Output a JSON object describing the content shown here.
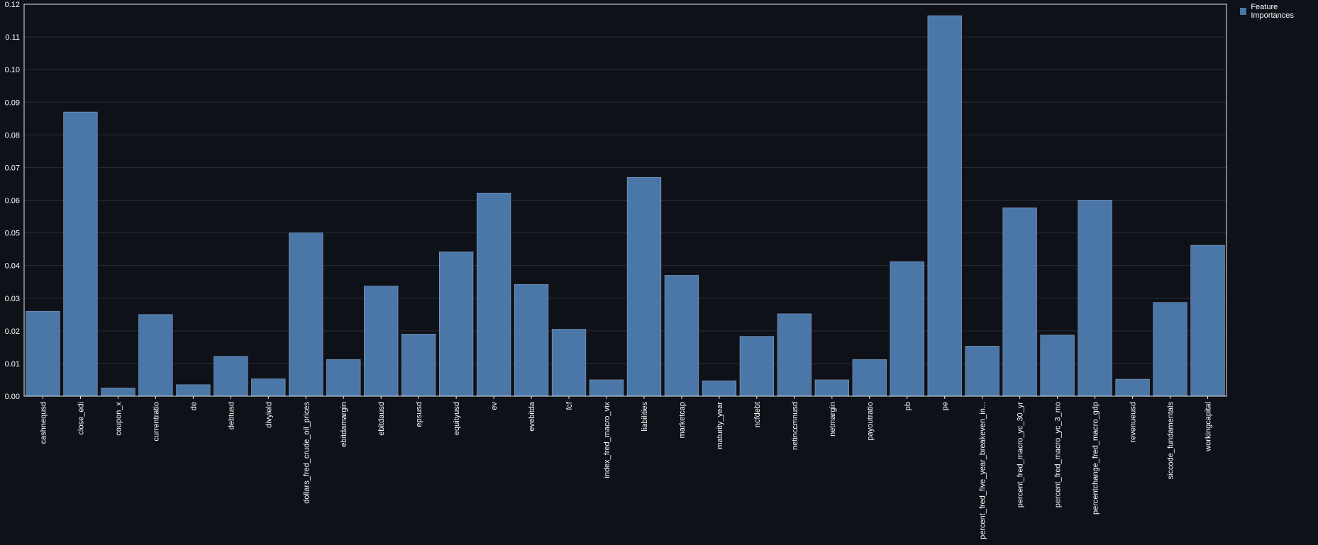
{
  "chart_data": {
    "type": "bar",
    "title": "",
    "xlabel": "",
    "ylabel": "",
    "ylim": [
      0,
      0.12
    ],
    "yticks": [
      "0.00",
      "0.01",
      "0.02",
      "0.03",
      "0.04",
      "0.05",
      "0.06",
      "0.07",
      "0.08",
      "0.09",
      "0.10",
      "0.11",
      "0.12"
    ],
    "grid": true,
    "legend_position": "top-right",
    "categories": [
      "cashnequsd",
      "close_edi",
      "coupon_x",
      "currentratio",
      "de",
      "debtusd",
      "divyield",
      "dollars_fred_crude_oil_prices",
      "ebitdamargin",
      "ebitdausd",
      "epsusd",
      "equityusd",
      "ev",
      "evebitda",
      "fcf",
      "index_fred_macro_vix",
      "liabilities",
      "marketcap",
      "maturity_year",
      "ncfdebt",
      "netinccmnusd",
      "netmargin",
      "payoutratio",
      "pb",
      "pe",
      "percent_fred_five_year_breakeven_in...",
      "percent_fred_macro_yc_30_yr",
      "percent_fred_macro_yc_3_mo",
      "percentchange_fred_macro_gdp",
      "revenueusd",
      "siccode_fundamentals",
      "workingcapital"
    ],
    "series": [
      {
        "name": "Feature Importances",
        "color": "#4a76a8",
        "values": [
          0.026,
          0.087,
          0.0025,
          0.025,
          0.0035,
          0.0122,
          0.0053,
          0.05,
          0.0112,
          0.0337,
          0.019,
          0.0442,
          0.0622,
          0.0342,
          0.0205,
          0.005,
          0.067,
          0.037,
          0.0047,
          0.0183,
          0.0252,
          0.005,
          0.0112,
          0.0412,
          0.1165,
          0.0153,
          0.0577,
          0.0187,
          0.06,
          0.0052,
          0.0287,
          0.0462
        ]
      }
    ],
    "colors": {
      "background": "#0f1118",
      "gridline": "#2a2d36",
      "axis": "#e8e8e8",
      "bar_stroke": "#8aa6c8"
    }
  }
}
